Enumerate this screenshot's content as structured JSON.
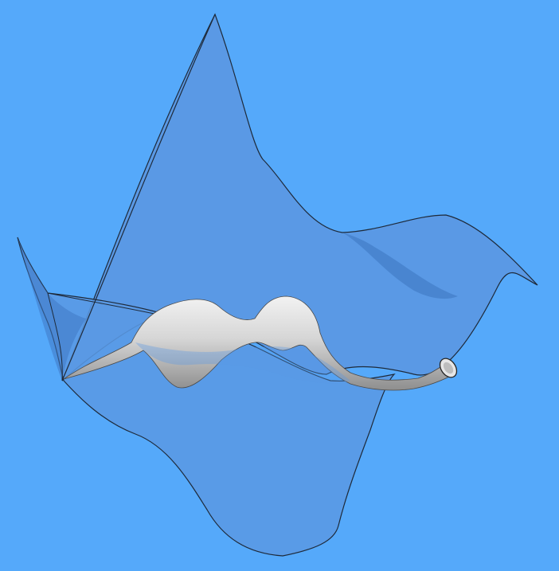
{
  "scene": {
    "background_color": "#55A9FA",
    "surface_color": "#5F9CE6",
    "surface_shadow_color": "#3F79C4",
    "edge_color": "#1E2A3A",
    "tube_color": "#D9D9D9",
    "tube_shadow_color": "#8C8C8C"
  }
}
